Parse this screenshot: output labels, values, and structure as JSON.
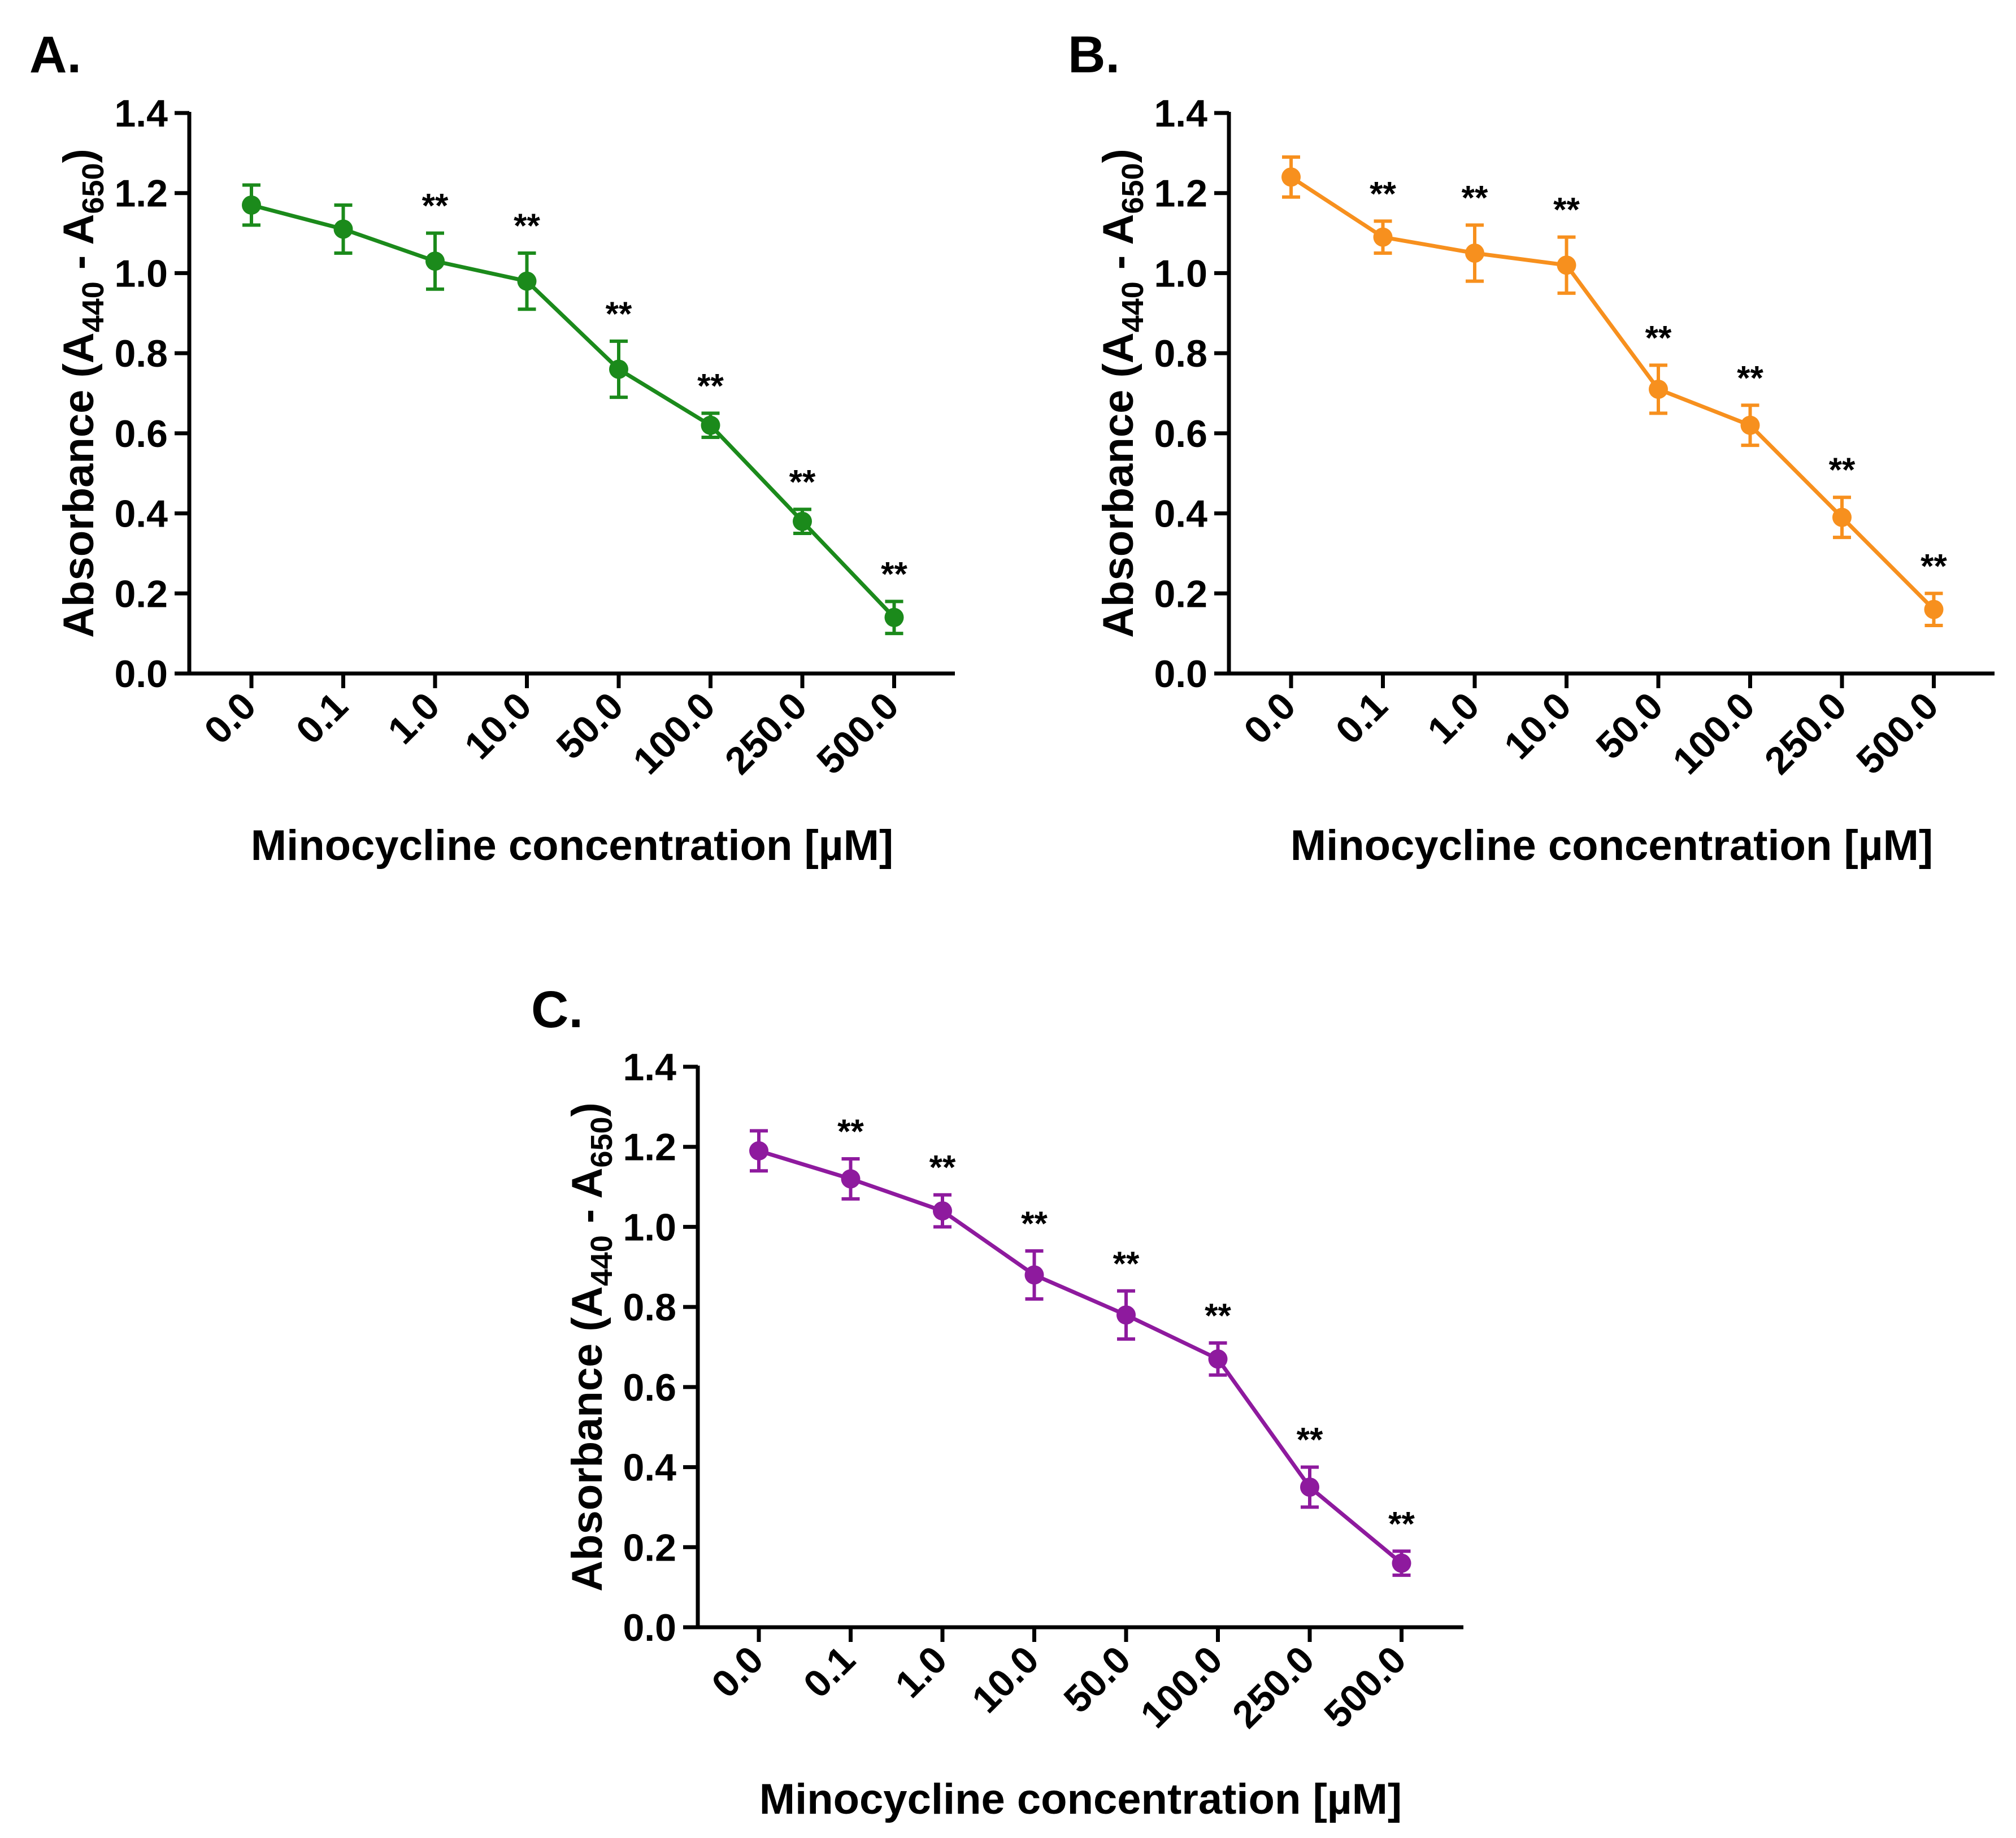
{
  "chart_data": [
    {
      "panel": "A.",
      "type": "line",
      "color": "#1b8a1b",
      "categories": [
        "0.0",
        "0.1",
        "1.0",
        "10.0",
        "50.0",
        "100.0",
        "250.0",
        "500.0"
      ],
      "values": [
        1.17,
        1.11,
        1.03,
        0.98,
        0.76,
        0.62,
        0.38,
        0.14
      ],
      "errors": [
        0.05,
        0.06,
        0.07,
        0.07,
        0.07,
        0.03,
        0.03,
        0.04
      ],
      "significance": [
        "",
        "",
        "**",
        "**",
        "**",
        "**",
        "**",
        "**"
      ],
      "xlabel": "Minocycline concentration [µM]",
      "ylabel": {
        "main": "Absorbance (A",
        "sub1": "440",
        "mid": " - A",
        "sub2": "650",
        "end": ")"
      },
      "ylim": [
        0,
        1.4
      ],
      "yticks": [
        "0.0",
        "0.2",
        "0.4",
        "0.6",
        "0.8",
        "1.0",
        "1.2",
        "1.4"
      ]
    },
    {
      "panel": "B.",
      "type": "line",
      "color": "#f7901e",
      "categories": [
        "0.0",
        "0.1",
        "1.0",
        "10.0",
        "50.0",
        "100.0",
        "250.0",
        "500.0"
      ],
      "values": [
        1.24,
        1.09,
        1.05,
        1.02,
        0.71,
        0.62,
        0.39,
        0.16
      ],
      "errors": [
        0.05,
        0.04,
        0.07,
        0.07,
        0.06,
        0.05,
        0.05,
        0.04
      ],
      "significance": [
        "",
        "**",
        "**",
        "**",
        "**",
        "**",
        "**",
        "**"
      ],
      "xlabel": "Minocycline concentration [µM]",
      "ylabel": {
        "main": "Absorbance (A",
        "sub1": "440",
        "mid": " - A",
        "sub2": "650",
        "end": ")"
      },
      "ylim": [
        0,
        1.4
      ],
      "yticks": [
        "0.0",
        "0.2",
        "0.4",
        "0.6",
        "0.8",
        "1.0",
        "1.2",
        "1.4"
      ]
    },
    {
      "panel": "C.",
      "type": "line",
      "color": "#8e1a9e",
      "categories": [
        "0.0",
        "0.1",
        "1.0",
        "10.0",
        "50.0",
        "100.0",
        "250.0",
        "500.0"
      ],
      "values": [
        1.19,
        1.12,
        1.04,
        0.88,
        0.78,
        0.67,
        0.35,
        0.16
      ],
      "errors": [
        0.05,
        0.05,
        0.04,
        0.06,
        0.06,
        0.04,
        0.05,
        0.03
      ],
      "significance": [
        "",
        "**",
        "**",
        "**",
        "**",
        "**",
        "**",
        "**"
      ],
      "xlabel": "Minocycline concentration [µM]",
      "ylabel": {
        "main": "Absorbance (A",
        "sub1": "440",
        "mid": " - A",
        "sub2": "650",
        "end": ")"
      },
      "ylim": [
        0,
        1.4
      ],
      "yticks": [
        "0.0",
        "0.2",
        "0.4",
        "0.6",
        "0.8",
        "1.0",
        "1.2",
        "1.4"
      ]
    }
  ]
}
